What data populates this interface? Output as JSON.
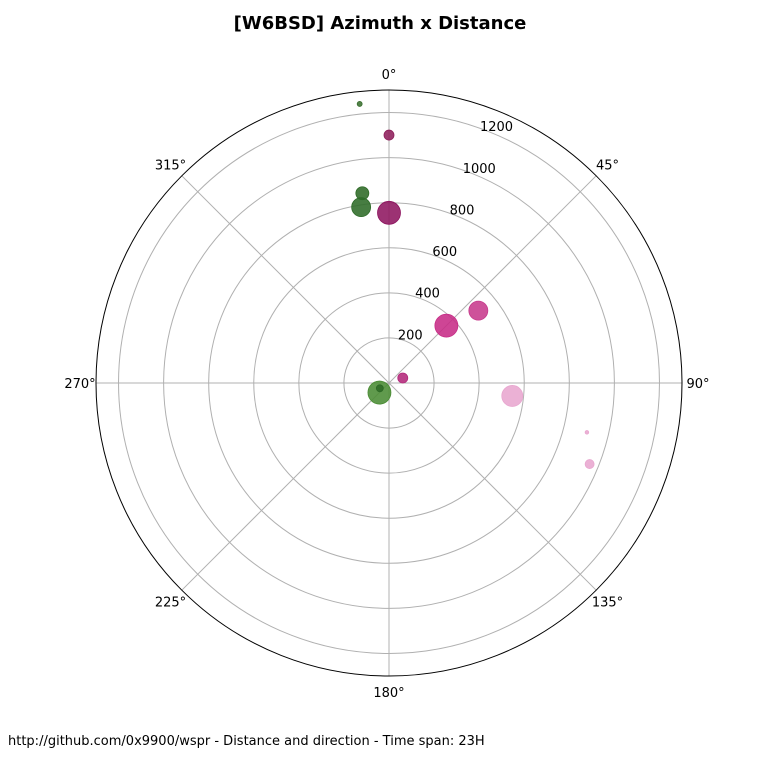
{
  "chart_data": {
    "type": "scatter",
    "projection": "polar",
    "title": "[W6BSD] Azimuth x Distance",
    "footer": "http://github.com/0x9900/wspr - Distance and direction - Time span: 23H",
    "theta_ticks": [
      "0°",
      "45°",
      "90°",
      "135°",
      "180°",
      "225°",
      "270°",
      "315°"
    ],
    "theta_tick_values": [
      0,
      45,
      90,
      135,
      180,
      225,
      270,
      315
    ],
    "r_ticks": [
      200,
      400,
      600,
      800,
      1000,
      1200
    ],
    "rlim": [
      0,
      1300
    ],
    "theta_zero": "N",
    "theta_direction": "clockwise",
    "grid": true,
    "points": [
      {
        "azimuth": 354,
        "distance": 1245,
        "size": 2.5,
        "color": "#3a7030"
      },
      {
        "azimuth": 0,
        "distance": 1100,
        "size": 5,
        "color": "#8e1f5b"
      },
      {
        "azimuth": 352,
        "distance": 850,
        "size": 6.5,
        "color": "#2e6a26"
      },
      {
        "azimuth": 351,
        "distance": 790,
        "size": 9.5,
        "color": "#2d6b28"
      },
      {
        "azimuth": 0,
        "distance": 755,
        "size": 11.5,
        "color": "#8e1660"
      },
      {
        "azimuth": 51,
        "distance": 510,
        "size": 9.5,
        "color": "#c73a8c"
      },
      {
        "azimuth": 45,
        "distance": 360,
        "size": 11.5,
        "color": "#c72b86"
      },
      {
        "azimuth": 70,
        "distance": 65,
        "size": 5,
        "color": "#b3287a"
      },
      {
        "azimuth": 225,
        "distance": 60,
        "size": 11.5,
        "color": "#4a8c34"
      },
      {
        "azimuth": 240,
        "distance": 47,
        "size": 3.5,
        "color": "#2e6a26"
      },
      {
        "azimuth": 96,
        "distance": 550,
        "size": 10.5,
        "color": "#e8a6cf"
      },
      {
        "azimuth": 104,
        "distance": 905,
        "size": 1.8,
        "color": "#e8a6cf"
      },
      {
        "azimuth": 112,
        "distance": 960,
        "size": 4.5,
        "color": "#e8a6cf"
      }
    ]
  }
}
